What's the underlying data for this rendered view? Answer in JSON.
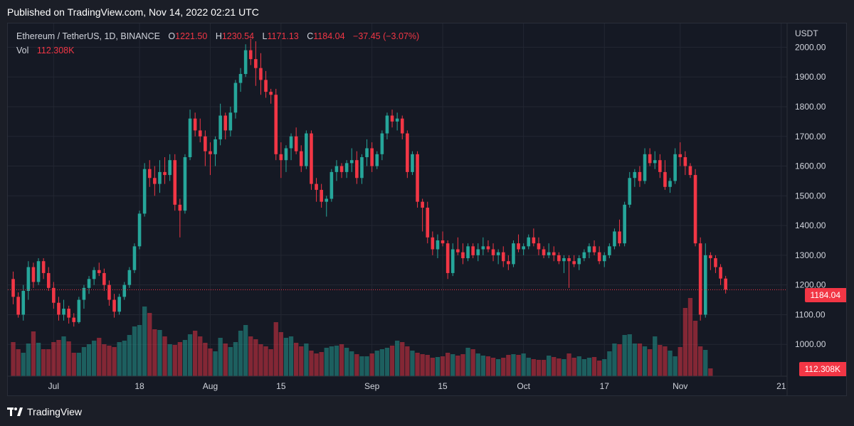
{
  "published": "Published on TradingView.com, Nov 14, 2022 02:21 UTC",
  "brand": "TradingView",
  "legend": {
    "symbol": "Ethereum / TetherUS, 1D, BINANCE",
    "open_label": "O",
    "open": "1221.50",
    "high_label": "H",
    "high": "1230.54",
    "low_label": "L",
    "low": "1171.13",
    "close_label": "C",
    "close": "1184.04",
    "change": "−37.45 (−3.07%)",
    "vol_label": "Vol",
    "vol": "112.308K"
  },
  "colors": {
    "up": "#26a69a",
    "down": "#f23645",
    "background": "#151924",
    "grid": "#2a2e39",
    "text": "#d1d4dc"
  },
  "chart_data": {
    "type": "candlestick",
    "title": "Ethereum / TetherUS, 1D, BINANCE",
    "currency": "USDT",
    "ylim": [
      900,
      2080
    ],
    "y_ticks": [
      1000,
      1100,
      1200,
      1300,
      1400,
      1500,
      1600,
      1700,
      1800,
      1900,
      2000
    ],
    "y_tick_labels": [
      "1000.00",
      "1100.00",
      "1200.00",
      "1300.00",
      "1400.00",
      "1500.00",
      "1600.00",
      "1700.00",
      "1800.00",
      "1900.00",
      "2000.00"
    ],
    "x_ticks": [
      {
        "label": "Jul",
        "index": 8
      },
      {
        "label": "18",
        "index": 25
      },
      {
        "label": "Aug",
        "index": 39
      },
      {
        "label": "15",
        "index": 53
      },
      {
        "label": "Sep",
        "index": 71
      },
      {
        "label": "15",
        "index": 85
      },
      {
        "label": "Oct",
        "index": 101
      },
      {
        "label": "17",
        "index": 117
      },
      {
        "label": "Nov",
        "index": 132
      },
      {
        "label": "21",
        "index": 152
      }
    ],
    "last_price": 1184.04,
    "last_price_label": "1184.04",
    "last_volume_label": "112.308K",
    "vol_max": 1200,
    "candles": [
      [
        1220,
        1245,
        1135,
        1160
      ],
      [
        1160,
        1175,
        1090,
        1100
      ],
      [
        1100,
        1200,
        1080,
        1180
      ],
      [
        1180,
        1280,
        1150,
        1260
      ],
      [
        1260,
        1275,
        1190,
        1210
      ],
      [
        1210,
        1290,
        1200,
        1280
      ],
      [
        1280,
        1290,
        1220,
        1240
      ],
      [
        1240,
        1260,
        1180,
        1190
      ],
      [
        1190,
        1210,
        1120,
        1140
      ],
      [
        1140,
        1160,
        1080,
        1100
      ],
      [
        1100,
        1150,
        1080,
        1120
      ],
      [
        1120,
        1130,
        1070,
        1090
      ],
      [
        1090,
        1105,
        1060,
        1075
      ],
      [
        1075,
        1160,
        1070,
        1150
      ],
      [
        1150,
        1200,
        1120,
        1190
      ],
      [
        1190,
        1230,
        1170,
        1220
      ],
      [
        1220,
        1260,
        1200,
        1250
      ],
      [
        1250,
        1275,
        1230,
        1240
      ],
      [
        1240,
        1255,
        1180,
        1200
      ],
      [
        1200,
        1215,
        1130,
        1150
      ],
      [
        1150,
        1170,
        1090,
        1110
      ],
      [
        1110,
        1170,
        1100,
        1160
      ],
      [
        1160,
        1210,
        1150,
        1200
      ],
      [
        1200,
        1260,
        1190,
        1250
      ],
      [
        1250,
        1340,
        1240,
        1330
      ],
      [
        1330,
        1450,
        1320,
        1440
      ],
      [
        1440,
        1610,
        1430,
        1590
      ],
      [
        1590,
        1620,
        1530,
        1560
      ],
      [
        1560,
        1600,
        1500,
        1540
      ],
      [
        1540,
        1620,
        1510,
        1580
      ],
      [
        1580,
        1630,
        1540,
        1570
      ],
      [
        1570,
        1640,
        1550,
        1620
      ],
      [
        1620,
        1640,
        1450,
        1470
      ],
      [
        1470,
        1490,
        1360,
        1450
      ],
      [
        1450,
        1640,
        1440,
        1630
      ],
      [
        1630,
        1790,
        1620,
        1760
      ],
      [
        1760,
        1780,
        1700,
        1720
      ],
      [
        1720,
        1760,
        1680,
        1700
      ],
      [
        1700,
        1720,
        1600,
        1650
      ],
      [
        1650,
        1680,
        1570,
        1640
      ],
      [
        1640,
        1700,
        1600,
        1690
      ],
      [
        1690,
        1810,
        1670,
        1770
      ],
      [
        1770,
        1780,
        1690,
        1720
      ],
      [
        1720,
        1800,
        1700,
        1780
      ],
      [
        1780,
        1890,
        1760,
        1880
      ],
      [
        1880,
        1930,
        1850,
        1910
      ],
      [
        1910,
        2010,
        1900,
        1990
      ],
      [
        1990,
        2030,
        1940,
        1960
      ],
      [
        1960,
        2020,
        1870,
        1930
      ],
      [
        1930,
        1980,
        1840,
        1890
      ],
      [
        1890,
        1920,
        1830,
        1850
      ],
      [
        1850,
        1860,
        1810,
        1840
      ],
      [
        1840,
        1860,
        1620,
        1640
      ],
      [
        1640,
        1680,
        1560,
        1620
      ],
      [
        1620,
        1670,
        1580,
        1660
      ],
      [
        1660,
        1710,
        1620,
        1700
      ],
      [
        1700,
        1730,
        1640,
        1650
      ],
      [
        1650,
        1670,
        1580,
        1600
      ],
      [
        1600,
        1720,
        1590,
        1710
      ],
      [
        1710,
        1720,
        1520,
        1540
      ],
      [
        1540,
        1560,
        1480,
        1520
      ],
      [
        1520,
        1540,
        1460,
        1480
      ],
      [
        1480,
        1500,
        1430,
        1490
      ],
      [
        1490,
        1590,
        1480,
        1580
      ],
      [
        1580,
        1620,
        1550,
        1600
      ],
      [
        1600,
        1610,
        1560,
        1580
      ],
      [
        1580,
        1620,
        1560,
        1610
      ],
      [
        1610,
        1660,
        1580,
        1620
      ],
      [
        1620,
        1650,
        1540,
        1560
      ],
      [
        1560,
        1640,
        1540,
        1630
      ],
      [
        1630,
        1690,
        1600,
        1660
      ],
      [
        1660,
        1680,
        1580,
        1600
      ],
      [
        1600,
        1650,
        1590,
        1640
      ],
      [
        1640,
        1720,
        1620,
        1710
      ],
      [
        1710,
        1780,
        1690,
        1770
      ],
      [
        1770,
        1790,
        1730,
        1750
      ],
      [
        1750,
        1780,
        1720,
        1760
      ],
      [
        1760,
        1770,
        1690,
        1710
      ],
      [
        1710,
        1720,
        1560,
        1580
      ],
      [
        1580,
        1650,
        1570,
        1640
      ],
      [
        1640,
        1650,
        1460,
        1480
      ],
      [
        1480,
        1490,
        1380,
        1460
      ],
      [
        1460,
        1480,
        1340,
        1360
      ],
      [
        1360,
        1380,
        1300,
        1320
      ],
      [
        1320,
        1370,
        1290,
        1350
      ],
      [
        1350,
        1380,
        1330,
        1340
      ],
      [
        1340,
        1350,
        1220,
        1240
      ],
      [
        1240,
        1340,
        1230,
        1320
      ],
      [
        1320,
        1360,
        1300,
        1310
      ],
      [
        1310,
        1340,
        1270,
        1290
      ],
      [
        1290,
        1340,
        1280,
        1330
      ],
      [
        1330,
        1340,
        1290,
        1300
      ],
      [
        1300,
        1340,
        1280,
        1320
      ],
      [
        1320,
        1360,
        1300,
        1330
      ],
      [
        1330,
        1350,
        1310,
        1320
      ],
      [
        1320,
        1340,
        1280,
        1300
      ],
      [
        1300,
        1320,
        1270,
        1310
      ],
      [
        1310,
        1330,
        1260,
        1280
      ],
      [
        1280,
        1300,
        1250,
        1270
      ],
      [
        1270,
        1350,
        1260,
        1340
      ],
      [
        1340,
        1370,
        1310,
        1320
      ],
      [
        1320,
        1340,
        1300,
        1330
      ],
      [
        1330,
        1370,
        1320,
        1360
      ],
      [
        1360,
        1390,
        1330,
        1340
      ],
      [
        1340,
        1360,
        1300,
        1320
      ],
      [
        1320,
        1330,
        1290,
        1300
      ],
      [
        1300,
        1340,
        1290,
        1310
      ],
      [
        1310,
        1330,
        1280,
        1300
      ],
      [
        1300,
        1310,
        1270,
        1280
      ],
      [
        1280,
        1300,
        1240,
        1290
      ],
      [
        1290,
        1300,
        1190,
        1280
      ],
      [
        1280,
        1300,
        1260,
        1270
      ],
      [
        1270,
        1300,
        1250,
        1290
      ],
      [
        1290,
        1320,
        1280,
        1310
      ],
      [
        1310,
        1340,
        1290,
        1330
      ],
      [
        1330,
        1350,
        1300,
        1310
      ],
      [
        1310,
        1330,
        1270,
        1280
      ],
      [
        1280,
        1310,
        1260,
        1300
      ],
      [
        1300,
        1340,
        1290,
        1330
      ],
      [
        1330,
        1390,
        1320,
        1380
      ],
      [
        1380,
        1420,
        1330,
        1340
      ],
      [
        1340,
        1480,
        1330,
        1470
      ],
      [
        1470,
        1580,
        1460,
        1560
      ],
      [
        1560,
        1590,
        1530,
        1580
      ],
      [
        1580,
        1600,
        1530,
        1550
      ],
      [
        1550,
        1660,
        1540,
        1640
      ],
      [
        1640,
        1660,
        1600,
        1610
      ],
      [
        1610,
        1650,
        1590,
        1620
      ],
      [
        1620,
        1640,
        1560,
        1580
      ],
      [
        1580,
        1620,
        1520,
        1530
      ],
      [
        1530,
        1560,
        1510,
        1550
      ],
      [
        1550,
        1660,
        1540,
        1640
      ],
      [
        1640,
        1680,
        1600,
        1630
      ],
      [
        1630,
        1650,
        1570,
        1600
      ],
      [
        1600,
        1610,
        1560,
        1570
      ],
      [
        1570,
        1590,
        1330,
        1340
      ],
      [
        1340,
        1360,
        1080,
        1100
      ],
      [
        1100,
        1340,
        1090,
        1300
      ],
      [
        1300,
        1310,
        1250,
        1290
      ],
      [
        1290,
        1300,
        1240,
        1260
      ],
      [
        1260,
        1270,
        1200,
        1221.5
      ],
      [
        1221.5,
        1230.54,
        1171.13,
        1184.04
      ]
    ],
    "volumes": [
      480,
      380,
      330,
      460,
      630,
      470,
      380,
      380,
      480,
      510,
      560,
      490,
      330,
      330,
      410,
      450,
      500,
      540,
      450,
      430,
      410,
      480,
      500,
      580,
      700,
      720,
      980,
      890,
      660,
      650,
      560,
      450,
      440,
      480,
      510,
      590,
      640,
      560,
      470,
      390,
      350,
      540,
      460,
      410,
      480,
      640,
      720,
      560,
      520,
      450,
      420,
      380,
      760,
      620,
      540,
      560,
      470,
      420,
      460,
      360,
      320,
      340,
      400,
      420,
      430,
      450,
      400,
      350,
      310,
      280,
      280,
      320,
      360,
      380,
      400,
      430,
      500,
      480,
      420,
      360,
      330,
      310,
      300,
      260,
      270,
      280,
      330,
      310,
      290,
      310,
      400,
      380,
      320,
      290,
      280,
      260,
      240,
      260,
      300,
      310,
      300,
      320,
      260,
      240,
      230,
      230,
      290,
      270,
      250,
      240,
      320,
      260,
      280,
      240,
      260,
      270,
      220,
      240,
      350,
      460,
      450,
      580,
      590,
      460,
      460,
      420,
      380,
      560,
      440,
      420,
      360,
      280,
      410,
      960,
      1100,
      780,
      420,
      370,
      110
    ]
  }
}
